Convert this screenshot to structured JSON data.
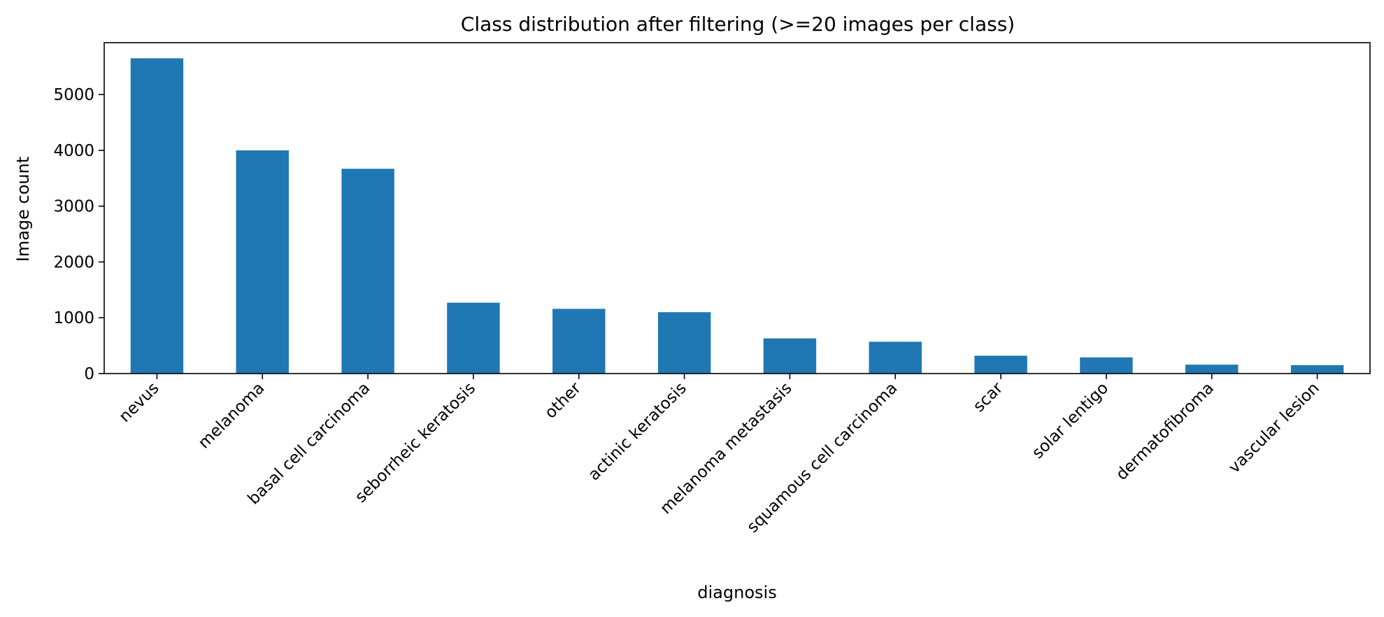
{
  "chart_data": {
    "type": "bar",
    "title": "Class distribution after filtering (>=20 images per class)",
    "xlabel": "diagnosis",
    "ylabel": "Image count",
    "categories": [
      "nevus",
      "melanoma",
      "basal cell carcinoma",
      "seborrheic keratosis",
      "other",
      "actinic keratosis",
      "melanoma metastasis",
      "squamous cell carcinoma",
      "scar",
      "solar lentigo",
      "dermatofibroma",
      "vascular lesion"
    ],
    "values": [
      5650,
      4000,
      3670,
      1270,
      1160,
      1100,
      630,
      570,
      320,
      290,
      160,
      150
    ],
    "yticks": [
      0,
      1000,
      2000,
      3000,
      4000,
      5000
    ],
    "ylim": [
      0,
      5930
    ],
    "grid": false,
    "legend": "none",
    "bar_color": "#1f77b4"
  }
}
